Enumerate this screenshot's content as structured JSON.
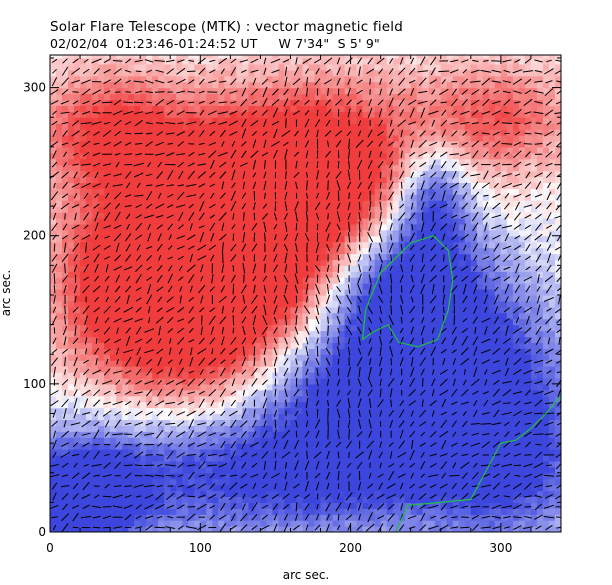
{
  "header": {
    "title": "Solar Flare Telescope (MTK) : vector magnetic field",
    "subtitle": "02/02/04  01:23:46-01:24:52 UT     W 7'34\"  S 5' 9\""
  },
  "chart_data": {
    "type": "heatmap",
    "title": "Solar Flare Telescope (MTK) : vector magnetic field",
    "subtitle": "02/02/04  01:23:46-01:24:52 UT     W 7'34\"  S 5' 9\"",
    "xlabel": "arc sec.",
    "ylabel": "arc sec.",
    "xlim": [
      0,
      340
    ],
    "ylim": [
      0,
      322
    ],
    "x_ticks": [
      0,
      100,
      200,
      300
    ],
    "y_ticks": [
      0,
      100,
      200,
      300
    ],
    "x_tick_labels": [
      "0",
      "100",
      "200",
      "300"
    ],
    "y_tick_labels": [
      "0",
      "100",
      "200",
      "300"
    ],
    "colors": {
      "positive": "#f03c3c",
      "negative": "#3c46dc",
      "neutral": "#ffffff",
      "contour": "#20c040",
      "vector": "#000000"
    },
    "positive_regions": [
      {
        "cx": 100,
        "cy": 150,
        "rx": 60,
        "ry": 70,
        "strength": 1.0
      },
      {
        "cx": 130,
        "cy": 190,
        "rx": 70,
        "ry": 60,
        "strength": 0.9
      },
      {
        "cx": 40,
        "cy": 270,
        "rx": 50,
        "ry": 40,
        "strength": 0.7
      },
      {
        "cx": 180,
        "cy": 260,
        "rx": 90,
        "ry": 50,
        "strength": 0.7
      },
      {
        "cx": 300,
        "cy": 280,
        "rx": 50,
        "ry": 35,
        "strength": 0.5
      },
      {
        "cx": 40,
        "cy": 170,
        "rx": 40,
        "ry": 60,
        "strength": 0.6
      },
      {
        "cx": 150,
        "cy": 230,
        "rx": 60,
        "ry": 40,
        "strength": 0.8
      }
    ],
    "negative_regions": [
      {
        "cx": 240,
        "cy": 160,
        "rx": 50,
        "ry": 45,
        "strength": 1.0
      },
      {
        "cx": 210,
        "cy": 100,
        "rx": 80,
        "ry": 50,
        "strength": 0.8
      },
      {
        "cx": 150,
        "cy": 40,
        "rx": 170,
        "ry": 45,
        "strength": 0.8
      },
      {
        "cx": 20,
        "cy": 20,
        "rx": 40,
        "ry": 35,
        "strength": 0.9
      },
      {
        "cx": 300,
        "cy": 80,
        "rx": 50,
        "ry": 80,
        "strength": 0.7
      },
      {
        "cx": 255,
        "cy": 225,
        "rx": 25,
        "ry": 40,
        "strength": 0.8
      }
    ],
    "contours": [
      {
        "closed": true,
        "points": [
          [
            208,
            130
          ],
          [
            210,
            150
          ],
          [
            220,
            175
          ],
          [
            240,
            195
          ],
          [
            255,
            200
          ],
          [
            265,
            190
          ],
          [
            268,
            170
          ],
          [
            265,
            150
          ],
          [
            258,
            130
          ],
          [
            245,
            125
          ],
          [
            232,
            128
          ],
          [
            225,
            140
          ],
          [
            215,
            135
          ]
        ]
      },
      {
        "closed": false,
        "points": [
          [
            230,
            0
          ],
          [
            238,
            18
          ],
          [
            260,
            20
          ],
          [
            280,
            22
          ],
          [
            300,
            60
          ],
          [
            310,
            62
          ],
          [
            320,
            70
          ],
          [
            330,
            80
          ],
          [
            340,
            92
          ]
        ]
      }
    ],
    "vector_grid": {
      "dx": 7,
      "dy": 7,
      "length": 4.5
    }
  }
}
